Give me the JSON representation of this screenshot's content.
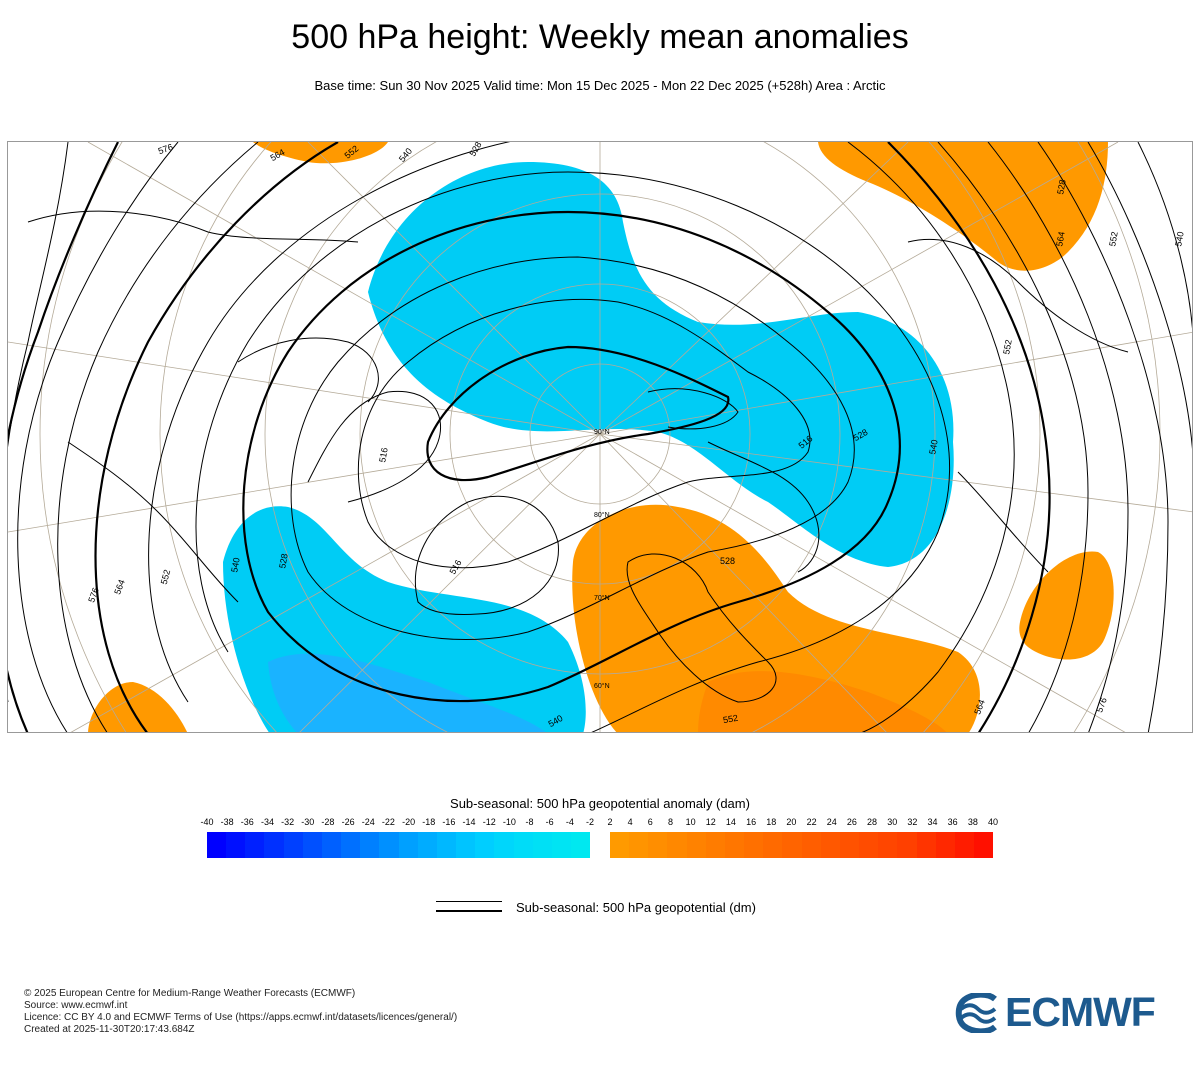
{
  "header": {
    "title": "500 hPa height: Weekly mean anomalies",
    "subtitle": "Base time: Sun 30 Nov 2025 Valid time: Mon 15 Dec 2025 - Mon 22 Dec 2025 (+528h) Area : Arctic"
  },
  "map": {
    "area": "Arctic",
    "projection": "polar-stereographic",
    "contour_labels": [
      "576",
      "564",
      "552",
      "540",
      "528",
      "516",
      "528",
      "540",
      "552",
      "564",
      "576",
      "564",
      "552",
      "540",
      "528",
      "516",
      "540",
      "528",
      "552",
      "564",
      "576",
      "540",
      "528",
      "552",
      "516"
    ],
    "pole_label": "90°N",
    "latitude_labels": [
      "80°N",
      "70°N",
      "60°N"
    ],
    "anomaly_colors": {
      "negative": "#00ccf5",
      "negative_strong": "#1ab3ff",
      "positive": "#ff9900",
      "positive_strong": "#ff8000"
    }
  },
  "legend": {
    "anomaly_title": "Sub-seasonal: 500 hPa geopotential anomaly (dam)",
    "ticks": [
      "-40",
      "-38",
      "-36",
      "-34",
      "-32",
      "-30",
      "-28",
      "-26",
      "-24",
      "-22",
      "-20",
      "-18",
      "-16",
      "-14",
      "-12",
      "-10",
      "-8",
      "-6",
      "-4",
      "-2",
      "2",
      "4",
      "6",
      "8",
      "10",
      "12",
      "14",
      "16",
      "18",
      "20",
      "22",
      "24",
      "26",
      "28",
      "30",
      "32",
      "34",
      "36",
      "38",
      "40"
    ],
    "negative_colors": [
      "#0000ff",
      "#0010ff",
      "#0020ff",
      "#0030ff",
      "#0040ff",
      "#0050ff",
      "#0060ff",
      "#0070ff",
      "#0080ff",
      "#0090ff",
      "#00a0ff",
      "#00acff",
      "#00b8ff",
      "#00c4ff",
      "#00ceff",
      "#00d6fb",
      "#00dcf8",
      "#00e0f5",
      "#00e4f3",
      "#00e8f0"
    ],
    "positive_colors": [
      "#ff9a00",
      "#ff9400",
      "#ff8e00",
      "#ff8800",
      "#ff8200",
      "#ff7c00",
      "#ff7600",
      "#ff7000",
      "#ff6a00",
      "#ff6400",
      "#ff5e00",
      "#ff5800",
      "#ff5200",
      "#ff4c00",
      "#ff4600",
      "#ff4000",
      "#ff3400",
      "#ff2800",
      "#ff1c00",
      "#ff1000"
    ],
    "line_label": "Sub-seasonal: 500 hPa geopotential (dm)"
  },
  "credits": {
    "line1": "© 2025 European Centre for Medium-Range Weather Forecasts (ECMWF)",
    "line2": "Source: www.ecmwf.int",
    "line3": "Licence: CC BY 4.0 and ECMWF Terms of Use (https://apps.ecmwf.int/datasets/licences/general/)",
    "line4": "Created at 2025-11-30T20:17:43.684Z"
  },
  "logo": {
    "text": "ECMWF",
    "color": "#1d5a8e"
  }
}
